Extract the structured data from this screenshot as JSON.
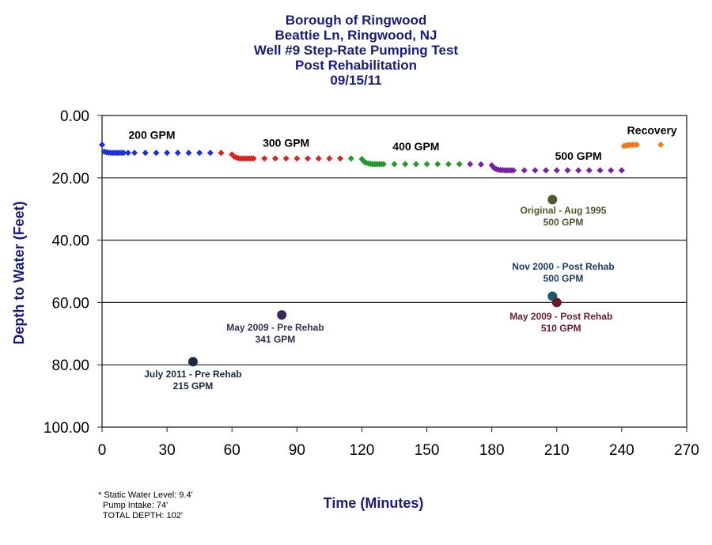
{
  "chart_data": {
    "type": "scatter",
    "title_lines": [
      "Borough of Ringwood",
      "Beattie Ln, Ringwood, NJ",
      "Well #9 Step-Rate Pumping Test",
      "Post Rehabilitation",
      "09/15/11"
    ],
    "xlabel": "Time (Minutes)",
    "ylabel": "Depth to Water (Feet)",
    "xlim": [
      0,
      270
    ],
    "ylim": [
      100,
      0
    ],
    "y_inverted": true,
    "x_ticks": [
      "0",
      "30",
      "60",
      "90",
      "120",
      "150",
      "180",
      "210",
      "240",
      "270"
    ],
    "y_ticks": [
      "0.00",
      "20.00",
      "40.00",
      "60.00",
      "80.00",
      "100.00"
    ],
    "horizontal_grid": true,
    "colors": {
      "title": "#1a1a80",
      "axis_label": "#1a1a80",
      "step_200": "#1f2fe0",
      "step_300": "#e02020",
      "step_400": "#22992a",
      "step_500": "#7a1fa0",
      "recovery": "#f07a1a"
    },
    "series": [
      {
        "name": "200 GPM",
        "color": "#1f2fe0",
        "x": [
          0,
          1,
          2,
          3,
          4,
          5,
          6,
          7,
          8,
          9,
          10,
          12,
          15,
          20,
          25,
          30,
          35,
          40,
          45,
          50
        ],
        "y": [
          9.4,
          11.6,
          11.8,
          11.9,
          12.0,
          12.0,
          12.0,
          12.0,
          12.0,
          12.0,
          12.0,
          12.0,
          12.0,
          12.0,
          12.0,
          12.0,
          12.0,
          12.0,
          12.0,
          12.0
        ]
      },
      {
        "name": "300 GPM",
        "color": "#e02020",
        "x": [
          55,
          60,
          61,
          62,
          63,
          64,
          65,
          66,
          67,
          68,
          69,
          70,
          75,
          80,
          85,
          90,
          95,
          100,
          105,
          110
        ],
        "y": [
          12.0,
          12.5,
          13.2,
          13.5,
          13.7,
          13.8,
          13.8,
          13.8,
          13.8,
          13.8,
          13.8,
          13.8,
          13.8,
          13.8,
          13.8,
          13.8,
          13.8,
          13.8,
          13.8,
          13.8
        ]
      },
      {
        "name": "400 GPM",
        "color": "#22992a",
        "x": [
          115,
          120,
          121,
          122,
          123,
          124,
          125,
          126,
          127,
          128,
          129,
          130,
          135,
          140,
          145,
          150,
          155,
          160,
          165
        ],
        "y": [
          13.8,
          14.0,
          14.8,
          15.2,
          15.4,
          15.5,
          15.6,
          15.6,
          15.6,
          15.6,
          15.6,
          15.6,
          15.6,
          15.6,
          15.6,
          15.6,
          15.6,
          15.6,
          15.6
        ]
      },
      {
        "name": "500 GPM",
        "color": "#7a1fa0",
        "x": [
          170,
          175,
          180,
          181,
          182,
          183,
          184,
          185,
          186,
          187,
          188,
          189,
          190,
          195,
          200,
          205,
          210,
          215,
          220,
          225,
          230,
          235,
          240
        ],
        "y": [
          15.6,
          15.7,
          16.0,
          16.8,
          17.2,
          17.4,
          17.5,
          17.5,
          17.6,
          17.6,
          17.6,
          17.6,
          17.6,
          17.6,
          17.6,
          17.6,
          17.6,
          17.6,
          17.6,
          17.6,
          17.6,
          17.6,
          17.6
        ]
      },
      {
        "name": "Recovery",
        "color": "#f07a1a",
        "x": [
          241,
          242,
          243,
          244,
          245,
          246,
          247,
          258
        ],
        "y": [
          9.8,
          9.6,
          9.5,
          9.5,
          9.4,
          9.4,
          9.4,
          9.4
        ]
      }
    ],
    "step_labels": [
      {
        "text": "200 GPM",
        "x": 23,
        "y": 7.5
      },
      {
        "text": "300 GPM",
        "x": 85,
        "y": 10.0
      },
      {
        "text": "400 GPM",
        "x": 145,
        "y": 11.2
      },
      {
        "text": "500 GPM",
        "x": 220,
        "y": 14.2
      },
      {
        "text": "Recovery",
        "x": 254,
        "y": 6.0
      }
    ],
    "historical_points": [
      {
        "label_lines": [
          "July 2011 - Pre Rehab",
          "215 GPM"
        ],
        "x": 42,
        "y": 79,
        "color": "#1a2a40",
        "text_color": "#1a2a40",
        "label_x": 42,
        "label_y": 84
      },
      {
        "label_lines": [
          "May 2009 - Pre Rehab",
          "341 GPM"
        ],
        "x": 83,
        "y": 64,
        "color": "#3a2a5a",
        "text_color": "#3a2a5a",
        "label_x": 80,
        "label_y": 69
      },
      {
        "label_lines": [
          "Original - Aug 1995",
          "500 GPM"
        ],
        "x": 208,
        "y": 27,
        "color": "#4a5a2a",
        "text_color": "#4a5a2a",
        "label_x": 213,
        "label_y": 31.5
      },
      {
        "label_lines": [
          "Nov 2000 - Post Rehab",
          "500 GPM"
        ],
        "x": 208,
        "y": 58,
        "color": "#1a5a6a",
        "text_color": "#1a3a6a",
        "label_x": 213,
        "label_y": 49.5
      },
      {
        "label_lines": [
          "May 2009 - Post Rehab",
          "510 GPM"
        ],
        "x": 210,
        "y": 60,
        "color": "#6a1a2a",
        "text_color": "#6a1a2a",
        "label_x": 212,
        "label_y": 65.5
      }
    ]
  },
  "notes": {
    "static_water_level": "* Static Water Level: 9.4'",
    "pump_intake": "Pump Intake: 74'",
    "total_depth": "TOTAL DEPTH: 102'"
  }
}
